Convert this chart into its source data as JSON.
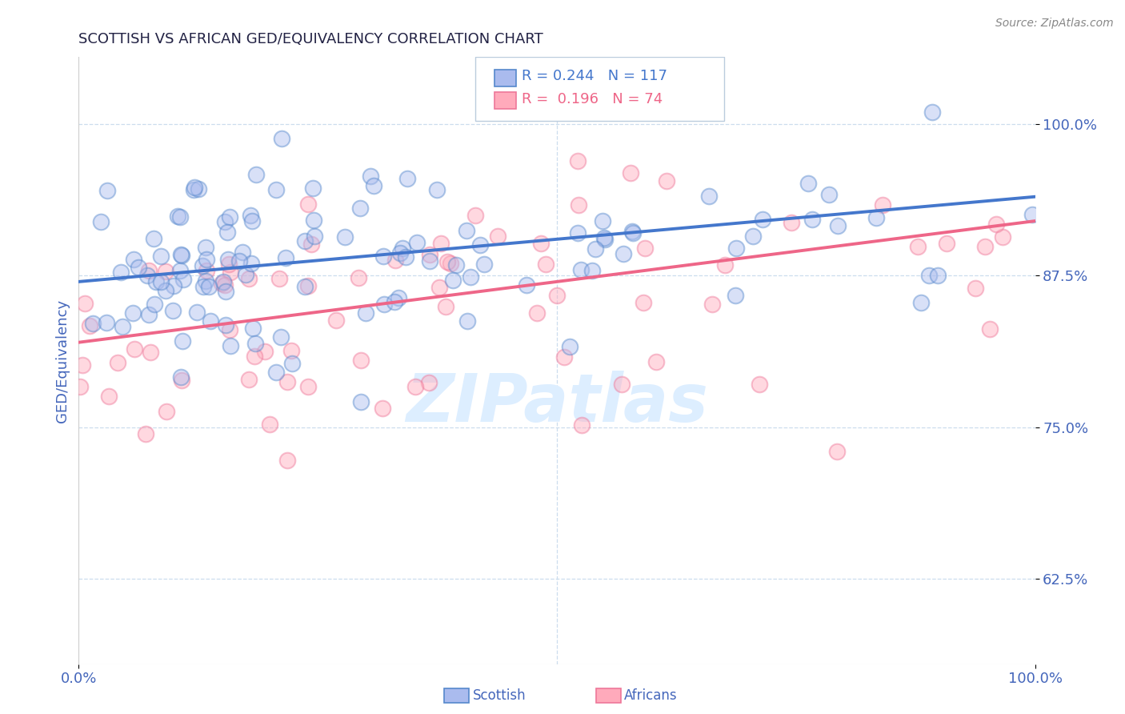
{
  "title": "SCOTTISH VS AFRICAN GED/EQUIVALENCY CORRELATION CHART",
  "source": "Source: ZipAtlas.com",
  "ylabel": "GED/Equivalency",
  "xlim": [
    0,
    1
  ],
  "ylim": [
    0.555,
    1.055
  ],
  "yticks": [
    0.625,
    0.75,
    0.875,
    1.0
  ],
  "ytick_labels": [
    "62.5%",
    "75.0%",
    "87.5%",
    "100.0%"
  ],
  "xtick_labels": [
    "0.0%",
    "100.0%"
  ],
  "blue_fill": "#AABBEE",
  "blue_edge": "#5588CC",
  "pink_fill": "#FFAABB",
  "pink_edge": "#EE7799",
  "blue_line_color": "#4477CC",
  "pink_line_color": "#EE6688",
  "title_color": "#222244",
  "tick_color": "#4466BB",
  "source_color": "#888888",
  "watermark_color": "#DDEEFF",
  "legend_label_blue": "Scottish",
  "legend_label_pink": "Africans",
  "blue_R": 0.244,
  "blue_N": 117,
  "pink_R": 0.196,
  "pink_N": 74,
  "blue_intercept": 0.87,
  "blue_slope": 0.07,
  "pink_intercept": 0.82,
  "pink_slope": 0.1,
  "background_color": "#FFFFFF",
  "grid_color": "#CCDDEE",
  "scatter_size": 200,
  "scatter_alpha": 0.45,
  "scatter_linewidth": 1.5,
  "seed": 123
}
